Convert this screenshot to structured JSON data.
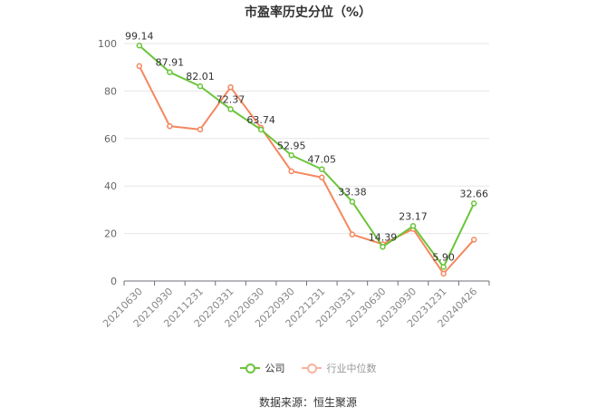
{
  "chart_data": {
    "type": "line",
    "title": "市盈率历史分位（%）",
    "categories": [
      "20210630",
      "20210930",
      "20211231",
      "20220331",
      "20220630",
      "20220930",
      "20221231",
      "20230331",
      "20230630",
      "20230930",
      "20231231",
      "20240426"
    ],
    "series": [
      {
        "name": "公司",
        "color": "#6ac53a",
        "values": [
          99.14,
          87.91,
          82.01,
          72.37,
          63.74,
          52.95,
          47.05,
          33.38,
          14.39,
          23.17,
          5.9,
          32.66
        ],
        "labels": [
          "99.14",
          "87.91",
          "82.01",
          "72.37",
          "63.74",
          "52.95",
          "47.05",
          "33.38",
          "14.39",
          "23.17",
          "5.90",
          "32.66"
        ]
      },
      {
        "name": "行业中位数",
        "color": "#f5875f",
        "values": [
          90.5,
          65.2,
          63.8,
          81.6,
          64.5,
          46.2,
          43.6,
          19.6,
          15.5,
          21.9,
          3.1,
          17.4
        ]
      }
    ],
    "ylim": [
      0,
      100
    ],
    "yticks": [
      "0",
      "20",
      "40",
      "60",
      "80",
      "100"
    ],
    "grid": true,
    "legend": "bottom"
  },
  "source": "数据来源：恒生聚源"
}
